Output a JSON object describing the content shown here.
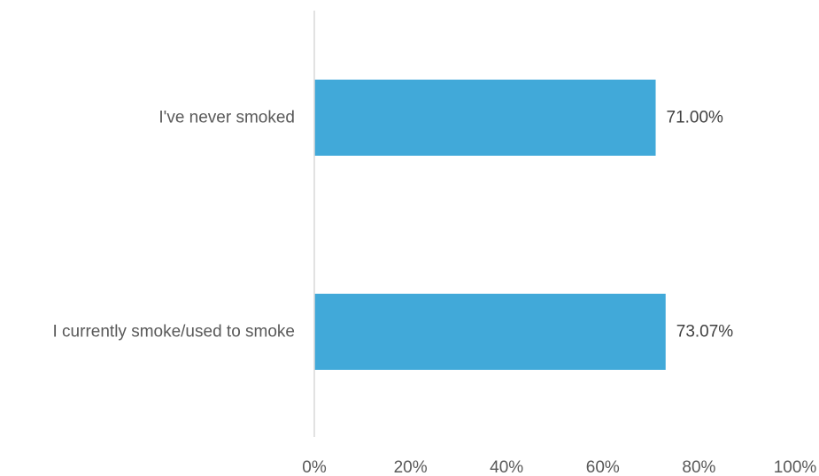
{
  "chart_data": {
    "type": "bar",
    "orientation": "horizontal",
    "categories": [
      "I've never smoked",
      "I currently smoke/used to smoke"
    ],
    "values": [
      71.0,
      73.07
    ],
    "data_labels": [
      "71.00%",
      "73.07%"
    ],
    "xlim": [
      0,
      100
    ],
    "x_ticks": [
      0,
      20,
      40,
      60,
      80,
      100
    ],
    "x_tick_labels": [
      "0%",
      "20%",
      "40%",
      "60%",
      "80%",
      "100%"
    ],
    "grid": false,
    "legend": "none",
    "bar_color": "#41a9d9",
    "axis_color": "#d9d9d9"
  }
}
